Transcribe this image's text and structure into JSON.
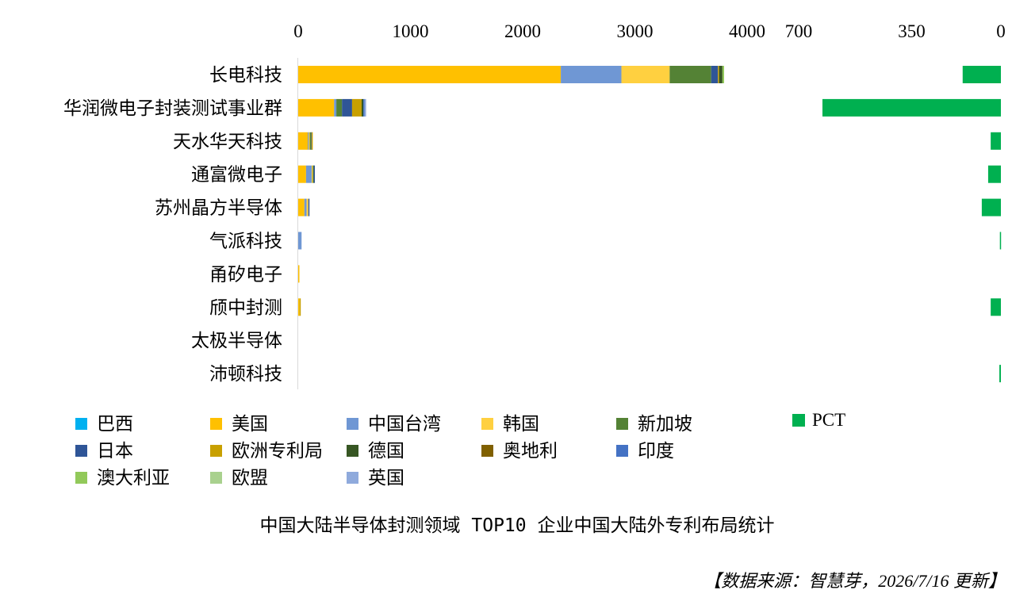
{
  "chart_data": {
    "type": "bar",
    "orientation": "horizontal-stacked",
    "title": "中国大陆半导体封测领域 TOP10 企业中国大陆外专利布局统计",
    "source": "【数据来源：智慧芽，2026/7/16 更新】",
    "categories": [
      "长电科技",
      "华润微电子封装测试事业群",
      "天水华天科技",
      "通富微电子",
      "苏州晶方半导体",
      "气派科技",
      "甬矽电子",
      "颀中封测",
      "太极半导体",
      "沛顿科技"
    ],
    "left_axis": {
      "ticks": [
        "0",
        "1000",
        "2000",
        "3000",
        "4000"
      ],
      "range": [
        0,
        4000
      ]
    },
    "right_axis": {
      "ticks": [
        "700",
        "350",
        "0"
      ],
      "range": [
        0,
        700
      ],
      "reversed": true
    },
    "series": [
      {
        "name": "巴西",
        "color": "#00B0F0",
        "values": [
          0,
          0,
          0,
          0,
          0,
          0,
          0,
          0,
          0,
          0
        ]
      },
      {
        "name": "美国",
        "color": "#FFC000",
        "values": [
          2340,
          320,
          85,
          70,
          55,
          0,
          8,
          12,
          0,
          0
        ]
      },
      {
        "name": "中国台湾",
        "color": "#6F97D4",
        "values": [
          540,
          20,
          8,
          50,
          20,
          30,
          0,
          0,
          0,
          0
        ]
      },
      {
        "name": "韩国",
        "color": "#FFD040",
        "values": [
          430,
          0,
          10,
          10,
          15,
          0,
          0,
          0,
          0,
          0
        ]
      },
      {
        "name": "新加坡",
        "color": "#548235",
        "values": [
          370,
          50,
          12,
          8,
          0,
          0,
          0,
          0,
          0,
          0
        ]
      },
      {
        "name": "PCT",
        "color": "#00B050",
        "axis": "right",
        "values": [
          150,
          700,
          40,
          50,
          75,
          4,
          0,
          40,
          0,
          6
        ]
      },
      {
        "name": "日本",
        "color": "#2F5597",
        "values": [
          60,
          90,
          4,
          10,
          6,
          0,
          0,
          0,
          0,
          0
        ]
      },
      {
        "name": "欧洲专利局",
        "color": "#C8A000",
        "values": [
          10,
          85,
          4,
          0,
          0,
          0,
          0,
          8,
          0,
          0
        ]
      },
      {
        "name": "德国",
        "color": "#375623",
        "values": [
          30,
          15,
          0,
          0,
          0,
          0,
          0,
          0,
          0,
          0
        ]
      },
      {
        "name": "奥地利",
        "color": "#806000",
        "values": [
          0,
          0,
          0,
          0,
          0,
          0,
          0,
          0,
          0,
          0
        ]
      },
      {
        "name": "印度",
        "color": "#4472C4",
        "values": [
          0,
          10,
          0,
          0,
          0,
          0,
          0,
          0,
          0,
          0
        ]
      },
      {
        "name": "澳大利亚",
        "color": "#92C95A",
        "values": [
          15,
          0,
          0,
          0,
          0,
          0,
          0,
          0,
          0,
          0
        ]
      },
      {
        "name": "欧盟",
        "color": "#A9D18E",
        "values": [
          0,
          0,
          0,
          0,
          0,
          0,
          0,
          0,
          0,
          0
        ]
      },
      {
        "name": "英国",
        "color": "#8FAADC",
        "values": [
          0,
          15,
          0,
          0,
          0,
          0,
          0,
          0,
          0,
          0
        ]
      }
    ],
    "stack_order": [
      "巴西",
      "美国",
      "中国台湾",
      "韩国",
      "新加坡",
      "日本",
      "欧洲专利局",
      "德国",
      "奥地利",
      "印度",
      "澳大利亚",
      "欧盟",
      "英国"
    ],
    "legend_rows": [
      [
        "巴西",
        "美国",
        "中国台湾",
        "韩国",
        "新加坡",
        "PCT"
      ],
      [
        "日本",
        "欧洲专利局",
        "德国",
        "奥地利",
        "印度"
      ],
      [
        "澳大利亚",
        "欧盟",
        "英国"
      ]
    ],
    "legend_position": "bottom",
    "grid": false
  }
}
